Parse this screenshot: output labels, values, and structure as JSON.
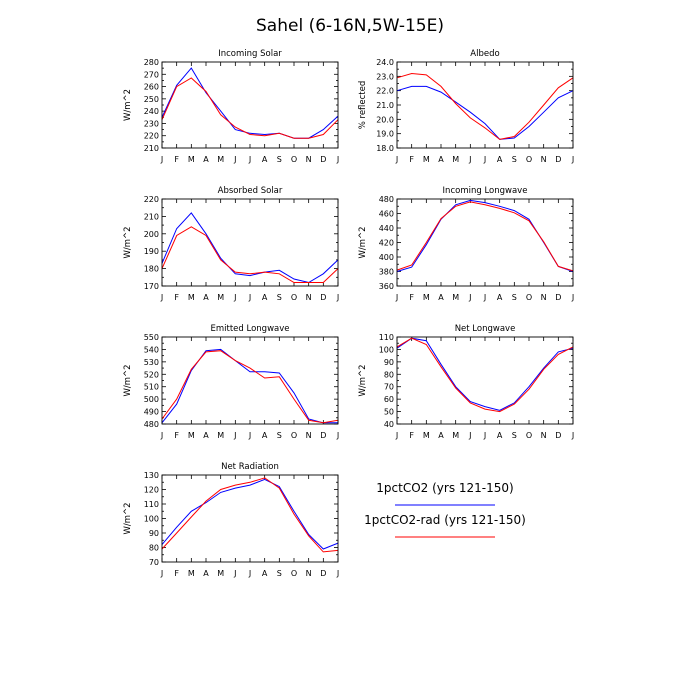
{
  "figure": {
    "title": "Sahel (6-16N,5W-15E)",
    "months": [
      "J",
      "F",
      "M",
      "A",
      "M",
      "J",
      "J",
      "A",
      "S",
      "O",
      "N",
      "D",
      "J"
    ]
  },
  "legend": {
    "entries": [
      {
        "label": "1pctCO2 (yrs 121-150)",
        "color": "#0000ff"
      },
      {
        "label": "1pctCO2-rad (yrs 121-150)",
        "color": "#ff0000"
      }
    ]
  },
  "chart_data": [
    {
      "type": "line",
      "title": "Incoming Solar",
      "ylabel": "W/m^2",
      "ylim": [
        210,
        280
      ],
      "yticks": [
        210,
        220,
        230,
        240,
        250,
        260,
        270,
        280
      ],
      "ytick_labels": [
        "210",
        "220",
        "230",
        "240",
        "250",
        "260",
        "270",
        "280"
      ],
      "series": [
        {
          "color": "#0000ff",
          "values": [
            235,
            261,
            275,
            255,
            240,
            225,
            222,
            221,
            222,
            218,
            218,
            225,
            236
          ]
        },
        {
          "color": "#ff0000",
          "values": [
            233,
            260,
            267,
            256,
            237,
            227,
            221,
            220,
            222,
            218,
            218,
            221,
            233
          ]
        }
      ]
    },
    {
      "type": "line",
      "title": "Albedo",
      "ylabel": "% reflected",
      "ylim": [
        18.0,
        24.0
      ],
      "yticks": [
        18,
        19,
        20,
        21,
        22,
        23,
        24
      ],
      "ytick_labels": [
        "18.0",
        "19.0",
        "20.0",
        "21.0",
        "22.0",
        "23.0",
        "24.0"
      ],
      "series": [
        {
          "color": "#0000ff",
          "values": [
            22.0,
            22.3,
            22.3,
            21.9,
            21.2,
            20.5,
            19.7,
            18.6,
            18.7,
            19.5,
            20.5,
            21.5,
            22.0
          ]
        },
        {
          "color": "#ff0000",
          "values": [
            22.9,
            23.2,
            23.1,
            22.3,
            21.1,
            20.1,
            19.4,
            18.6,
            18.8,
            19.8,
            21.0,
            22.2,
            22.9
          ]
        }
      ]
    },
    {
      "type": "line",
      "title": "Absorbed Solar",
      "ylabel": "W/m^2",
      "ylim": [
        170,
        220
      ],
      "yticks": [
        170,
        180,
        190,
        200,
        210,
        220
      ],
      "ytick_labels": [
        "170",
        "180",
        "190",
        "200",
        "210",
        "220"
      ],
      "series": [
        {
          "color": "#0000ff",
          "values": [
            183,
            203,
            212,
            200,
            186,
            177,
            176,
            178,
            179,
            174,
            172,
            177,
            185
          ]
        },
        {
          "color": "#ff0000",
          "values": [
            180,
            199,
            204,
            199,
            185,
            178,
            177,
            178,
            177,
            172,
            172,
            172,
            180
          ]
        }
      ]
    },
    {
      "type": "line",
      "title": "Incoming Longwave",
      "ylabel": "W/m^2",
      "ylim": [
        360,
        480
      ],
      "yticks": [
        360,
        380,
        400,
        420,
        440,
        460,
        480
      ],
      "ytick_labels": [
        "360",
        "380",
        "400",
        "420",
        "440",
        "460",
        "480"
      ],
      "series": [
        {
          "color": "#0000ff",
          "values": [
            380,
            386,
            417,
            452,
            472,
            478,
            475,
            470,
            464,
            452,
            420,
            387,
            380
          ]
        },
        {
          "color": "#ff0000",
          "values": [
            382,
            389,
            420,
            453,
            470,
            476,
            472,
            467,
            461,
            450,
            421,
            387,
            381
          ]
        }
      ]
    },
    {
      "type": "line",
      "title": "Emitted Longwave",
      "ylabel": "W/m^2",
      "ylim": [
        480,
        550
      ],
      "yticks": [
        480,
        490,
        500,
        510,
        520,
        530,
        540,
        550
      ],
      "ytick_labels": [
        "480",
        "490",
        "500",
        "510",
        "520",
        "530",
        "540",
        "550"
      ],
      "series": [
        {
          "color": "#0000ff",
          "values": [
            481,
            496,
            523,
            539,
            540,
            531,
            522,
            522,
            521,
            505,
            484,
            481,
            481
          ]
        },
        {
          "color": "#ff0000",
          "values": [
            484,
            500,
            524,
            538,
            539,
            531,
            525,
            517,
            518,
            500,
            483,
            481,
            483
          ]
        }
      ]
    },
    {
      "type": "line",
      "title": "Net Longwave",
      "ylabel": "W/m^2",
      "ylim": [
        40,
        110
      ],
      "yticks": [
        40,
        50,
        60,
        70,
        80,
        90,
        100,
        110
      ],
      "ytick_labels": [
        "40",
        "50",
        "60",
        "70",
        "80",
        "90",
        "100",
        "110"
      ],
      "series": [
        {
          "color": "#0000ff",
          "values": [
            101,
            109,
            107,
            88,
            70,
            58,
            54,
            51,
            57,
            70,
            85,
            98,
            101
          ]
        },
        {
          "color": "#ff0000",
          "values": [
            102,
            109,
            104,
            86,
            69,
            57,
            52,
            50,
            56,
            68,
            84,
            96,
            102
          ]
        }
      ]
    },
    {
      "type": "line",
      "title": "Net Radiation",
      "ylabel": "W/m^2",
      "ylim": [
        70,
        130
      ],
      "yticks": [
        70,
        80,
        90,
        100,
        110,
        120,
        130
      ],
      "ytick_labels": [
        "70",
        "80",
        "90",
        "100",
        "110",
        "120",
        "130"
      ],
      "series": [
        {
          "color": "#0000ff",
          "values": [
            82,
            94,
            105,
            111,
            118,
            121,
            123,
            127,
            122,
            105,
            89,
            79,
            83
          ]
        },
        {
          "color": "#ff0000",
          "values": [
            79,
            90,
            101,
            112,
            120,
            123,
            125,
            128,
            121,
            103,
            88,
            77,
            78
          ]
        }
      ]
    }
  ]
}
